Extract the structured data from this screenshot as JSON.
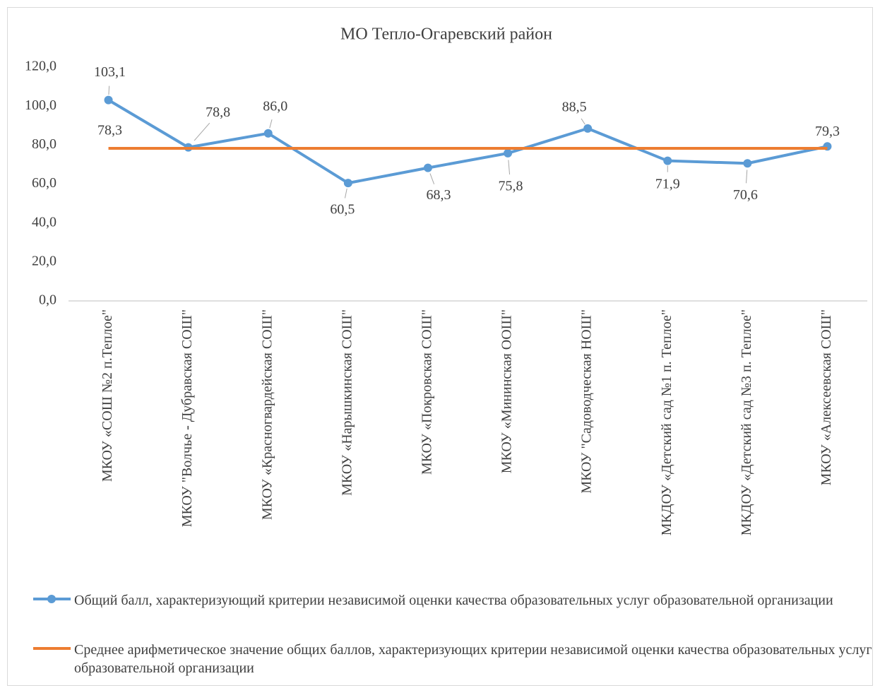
{
  "chart_data": {
    "type": "line",
    "title": "МО Тепло-Огаревский район",
    "categories": [
      "МКОУ «СОШ №2 п.Теплое\"",
      "МКОУ \"Волчье - Дубравская СОШ\"",
      "МКОУ «Красногвардейская СОШ\"",
      "МКОУ «Нарышкинская СОШ\"",
      "МКОУ «Покровская СОШ\"",
      "МКОУ «Мининская ООШ\"",
      "МКОУ \"Садоводческая НОШ\"",
      "МКДОУ  «Детский сад №1 п. Теплое\"",
      "МКДОУ «Детский сад №3 п. Теплое\"",
      "МКОУ «Алексеевская СОШ\""
    ],
    "series": [
      {
        "name": "Общий балл, характеризующий  критерии независимой оценки качества образовательных  услуг образовательной организации",
        "color": "#5b9bd5",
        "markers": true,
        "values": [
          103.1,
          78.8,
          86.0,
          60.5,
          68.3,
          75.8,
          88.5,
          71.9,
          70.6,
          79.3
        ],
        "value_labels": [
          "103,1",
          "78,8",
          "86,0",
          "60,5",
          "68,3",
          "75,8",
          "88,5",
          "71,9",
          "70,6",
          "79,3"
        ]
      },
      {
        "name": "Среднее арифметическое значение общих  баллов, характеризующих   критерии независимой оценки качества образовательных  услуг образовательной организации",
        "color": "#ed7d31",
        "markers": false,
        "values": [
          78.3,
          78.3,
          78.3,
          78.3,
          78.3,
          78.3,
          78.3,
          78.3,
          78.3,
          78.3
        ],
        "value_labels": [
          "78,3",
          null,
          null,
          null,
          null,
          null,
          null,
          null,
          null,
          null
        ]
      }
    ],
    "ylim": [
      0,
      120
    ],
    "yticks": [
      {
        "value": 0,
        "label": "0,0"
      },
      {
        "value": 20,
        "label": "20,0"
      },
      {
        "value": 40,
        "label": "40,0"
      },
      {
        "value": 60,
        "label": "60,0"
      },
      {
        "value": 80,
        "label": "80,0"
      },
      {
        "value": 100,
        "label": "100,0"
      },
      {
        "value": 120,
        "label": "120,0"
      }
    ],
    "grid": false
  }
}
